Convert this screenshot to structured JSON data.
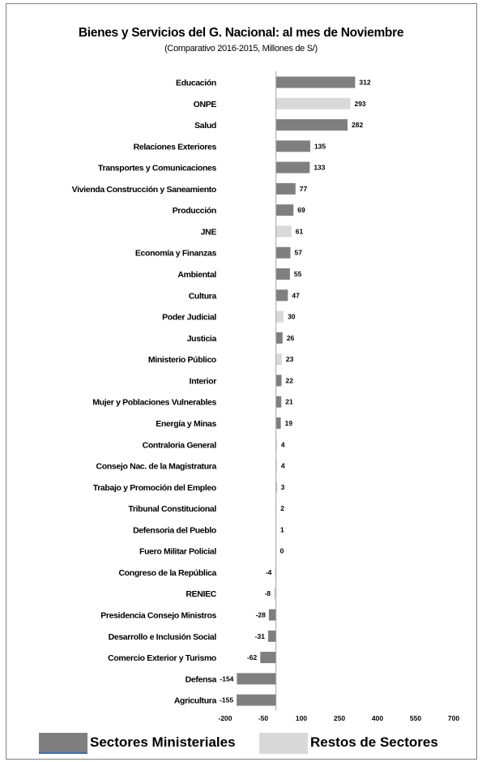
{
  "chart_data": {
    "type": "bar",
    "orientation": "horizontal",
    "title": "Bienes y Servicios del G. Nacional: al mes de Noviembre",
    "subtitle": "(Comparativo 2016-2015, Millones de S/)",
    "xlim": [
      -200,
      700
    ],
    "x_ticks": [
      -200,
      -50,
      100,
      250,
      400,
      550,
      700
    ],
    "x_tick_labels": [
      "-200",
      "-50",
      "100",
      "250",
      "400",
      "550",
      "700"
    ],
    "grid": false,
    "legend_position": "bottom",
    "colors": {
      "Sectores Ministeriales": "#7f7f7f",
      "Restos de Sectores": "#d9d9d9"
    },
    "legend": [
      "Sectores Ministeriales",
      "Restos de Sectores"
    ],
    "categories": [
      "Educación",
      "ONPE",
      "Salud",
      "Relaciones Exteriores",
      "Transportes y Comunicaciones",
      "Vivienda Construcción y Saneamiento",
      "Producción",
      "JNE",
      "Economía y Finanzas",
      "Ambiental",
      "Cultura",
      "Poder Judicial",
      "Justicia",
      "Ministerio Público",
      "Interior",
      "Mujer y Poblaciones Vulnerables",
      "Energía y Minas",
      "Contraloria General",
      "Consejo Nac. de la Magistratura",
      "Trabajo y Promoción del Empleo",
      "Tribunal Constitucional",
      "Defensoria del Pueblo",
      "Fuero Militar Policial",
      "Congreso de la República",
      "RENIEC",
      "Presidencia Consejo Ministros",
      "Desarrollo e Inclusión Social",
      "Comercio Exterior y Turismo",
      "Defensa",
      "Agricultura"
    ],
    "values": [
      312,
      293,
      282,
      135,
      133,
      77,
      69,
      61,
      57,
      55,
      47,
      30,
      26,
      23,
      22,
      21,
      19,
      4,
      4,
      3,
      2,
      1,
      0,
      -4,
      -8,
      -28,
      -31,
      -62,
      -154,
      -155
    ],
    "value_labels": [
      "312",
      "293",
      "282",
      "135",
      "133",
      "77",
      "69",
      "61",
      "57",
      "55",
      "47",
      "30",
      "26",
      "23",
      "22",
      "21",
      "19",
      "4",
      "4",
      "3",
      "2",
      "1",
      "0",
      "-4",
      "-8",
      "-28",
      "-31",
      "-62",
      "-154",
      "-155"
    ],
    "group": [
      "Sectores Ministeriales",
      "Restos de Sectores",
      "Sectores Ministeriales",
      "Sectores Ministeriales",
      "Sectores Ministeriales",
      "Sectores Ministeriales",
      "Sectores Ministeriales",
      "Restos de Sectores",
      "Sectores Ministeriales",
      "Sectores Ministeriales",
      "Sectores Ministeriales",
      "Restos de Sectores",
      "Sectores Ministeriales",
      "Restos de Sectores",
      "Sectores Ministeriales",
      "Sectores Ministeriales",
      "Sectores Ministeriales",
      "Restos de Sectores",
      "Restos de Sectores",
      "Sectores Ministeriales",
      "Restos de Sectores",
      "Restos de Sectores",
      "Restos de Sectores",
      "Restos de Sectores",
      "Restos de Sectores",
      "Sectores Ministeriales",
      "Sectores Ministeriales",
      "Sectores Ministeriales",
      "Sectores Ministeriales",
      "Sectores Ministeriales"
    ]
  }
}
